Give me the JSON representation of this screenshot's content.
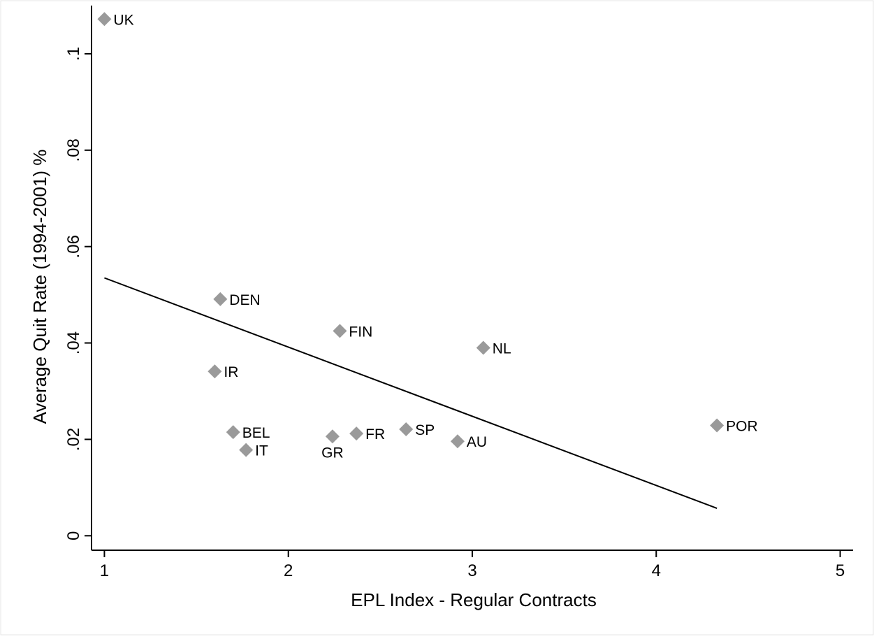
{
  "chart_data": {
    "type": "scatter",
    "xlabel": "EPL Index - Regular Contracts",
    "ylabel": "Average Quit Rate (1994-2001) %",
    "xlim": [
      0.93,
      5.07
    ],
    "ylim": [
      -0.003,
      0.11
    ],
    "xticks": [
      {
        "value": 1,
        "label": "1"
      },
      {
        "value": 2,
        "label": "2"
      },
      {
        "value": 3,
        "label": "3"
      },
      {
        "value": 4,
        "label": "4"
      },
      {
        "value": 5,
        "label": "5"
      }
    ],
    "yticks": [
      {
        "value": 0,
        "label": "0"
      },
      {
        "value": 0.02,
        "label": ".02"
      },
      {
        "value": 0.04,
        "label": ".04"
      },
      {
        "value": 0.06,
        "label": ".06"
      },
      {
        "value": 0.08,
        "label": ".08"
      },
      {
        "value": 0.1,
        "label": ".1"
      }
    ],
    "points": [
      {
        "label": "UK",
        "x": 1.0,
        "y": 0.1072,
        "label_position": "right"
      },
      {
        "label": "DEN",
        "x": 1.63,
        "y": 0.0491,
        "label_position": "right"
      },
      {
        "label": "FIN",
        "x": 2.28,
        "y": 0.0425,
        "label_position": "right"
      },
      {
        "label": "NL",
        "x": 3.06,
        "y": 0.039,
        "label_position": "right"
      },
      {
        "label": "IR",
        "x": 1.6,
        "y": 0.0341,
        "label_position": "right"
      },
      {
        "label": "POR",
        "x": 4.33,
        "y": 0.0229,
        "label_position": "right"
      },
      {
        "label": "SP",
        "x": 2.64,
        "y": 0.0221,
        "label_position": "right"
      },
      {
        "label": "BEL",
        "x": 1.7,
        "y": 0.0215,
        "label_position": "right"
      },
      {
        "label": "FR",
        "x": 2.37,
        "y": 0.0212,
        "label_position": "right"
      },
      {
        "label": "GR",
        "x": 2.24,
        "y": 0.0206,
        "label_position": "below"
      },
      {
        "label": "AU",
        "x": 2.92,
        "y": 0.0196,
        "label_position": "right"
      },
      {
        "label": "IT",
        "x": 1.77,
        "y": 0.0178,
        "label_position": "right"
      }
    ],
    "fit_line": {
      "x": [
        1.0,
        4.33
      ],
      "y": [
        0.0535,
        0.0057
      ]
    },
    "marker": "diamond",
    "marker_color": "#9a9a9a",
    "line_color": "#000000",
    "grid": false,
    "legend": "none"
  }
}
